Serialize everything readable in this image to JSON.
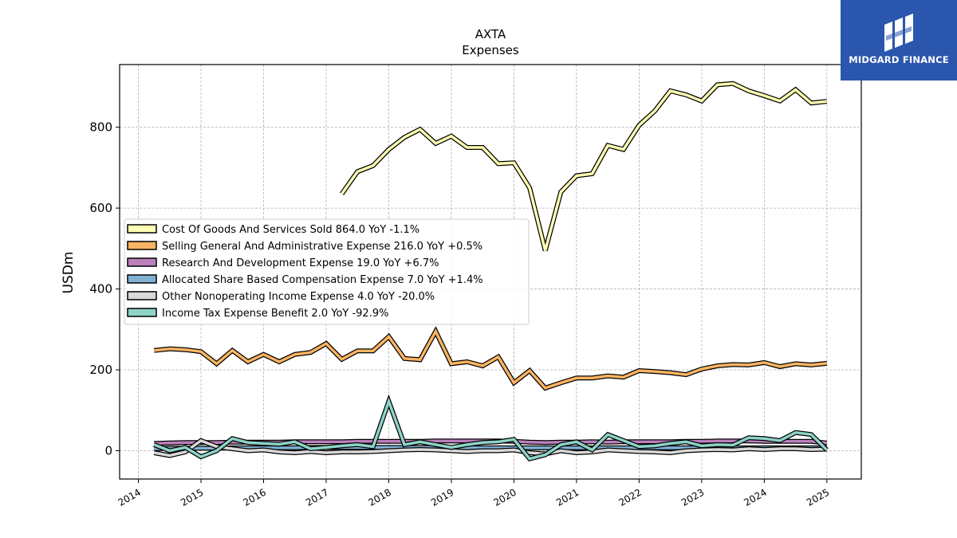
{
  "chart_data": {
    "type": "line",
    "title": "AXTA",
    "subtitle": "Expenses",
    "xlabel": "",
    "ylabel": "USDm",
    "xlim": [
      2013.7,
      2025.55
    ],
    "ylim": [
      -70,
      955
    ],
    "x_ticks": [
      "2014",
      "2015",
      "2016",
      "2017",
      "2018",
      "2019",
      "2020",
      "2021",
      "2022",
      "2023",
      "2024",
      "2025"
    ],
    "y_ticks": [
      0,
      200,
      400,
      600,
      800
    ],
    "grid": true,
    "legend_position": "center-left",
    "series": [
      {
        "name": "Cost Of Goods And Services Sold",
        "legend": "Cost Of Goods And Services Sold  864.0 YoY -1.1%",
        "color": "#ffffb3",
        "x": [
          2017.25,
          2017.5,
          2017.75,
          2018.0,
          2018.25,
          2018.5,
          2018.75,
          2019.0,
          2019.25,
          2019.5,
          2019.75,
          2020.0,
          2020.25,
          2020.5,
          2020.75,
          2021.0,
          2021.25,
          2021.5,
          2021.75,
          2022.0,
          2022.25,
          2022.5,
          2022.75,
          2023.0,
          2023.25,
          2023.5,
          2023.75,
          2024.0,
          2024.25,
          2024.5,
          2024.75,
          2025.0
        ],
        "values": [
          635,
          690,
          705,
          745,
          775,
          795,
          760,
          778,
          750,
          750,
          710,
          712,
          650,
          495,
          640,
          680,
          685,
          755,
          745,
          805,
          840,
          890,
          880,
          865,
          905,
          908,
          890,
          878,
          865,
          893,
          860,
          864
        ]
      },
      {
        "name": "Selling General And Administrative Expense",
        "legend": "Selling General And Administrative Expense  216.0 YoY +0.5%",
        "color": "#fdb462",
        "x": [
          2014.25,
          2014.5,
          2014.75,
          2015.0,
          2015.25,
          2015.5,
          2015.75,
          2016.0,
          2016.25,
          2016.5,
          2016.75,
          2017.0,
          2017.25,
          2017.5,
          2017.75,
          2018.0,
          2018.25,
          2018.5,
          2018.75,
          2019.0,
          2019.25,
          2019.5,
          2019.75,
          2020.0,
          2020.25,
          2020.5,
          2020.75,
          2021.0,
          2021.25,
          2021.5,
          2021.75,
          2022.0,
          2022.25,
          2022.5,
          2022.75,
          2023.0,
          2023.25,
          2023.5,
          2023.75,
          2024.0,
          2024.25,
          2024.5,
          2024.75,
          2025.0
        ],
        "values": [
          248,
          252,
          250,
          245,
          215,
          248,
          220,
          238,
          220,
          238,
          243,
          265,
          226,
          247,
          247,
          282,
          228,
          225,
          295,
          215,
          220,
          210,
          232,
          168,
          198,
          155,
          168,
          180,
          180,
          185,
          182,
          198,
          196,
          193,
          188,
          202,
          210,
          213,
          212,
          218,
          208,
          215,
          212,
          216
        ]
      },
      {
        "name": "Research And Development Expense",
        "legend": "Research And Development Expense  19.0 YoY +6.7%",
        "color": "#bc80bd",
        "x": [
          2014.25,
          2014.5,
          2014.75,
          2015.0,
          2015.25,
          2015.5,
          2015.75,
          2016.0,
          2016.25,
          2016.5,
          2016.75,
          2017.0,
          2017.25,
          2017.5,
          2017.75,
          2018.0,
          2018.25,
          2018.5,
          2018.75,
          2019.0,
          2019.25,
          2019.5,
          2019.75,
          2020.0,
          2020.25,
          2020.5,
          2020.75,
          2021.0,
          2021.25,
          2021.5,
          2021.75,
          2022.0,
          2022.25,
          2022.5,
          2022.75,
          2023.0,
          2023.25,
          2023.5,
          2023.75,
          2024.0,
          2024.25,
          2024.5,
          2024.75,
          2025.0
        ],
        "values": [
          18,
          19,
          20,
          20,
          20,
          21,
          21,
          21,
          21,
          22,
          22,
          22,
          22,
          23,
          23,
          23,
          23,
          23,
          24,
          24,
          24,
          24,
          24,
          23,
          21,
          20,
          21,
          21,
          22,
          21,
          22,
          22,
          22,
          22,
          23,
          23,
          24,
          24,
          24,
          23,
          23,
          23,
          23,
          19
        ]
      },
      {
        "name": "Allocated Share Based Compensation Expense",
        "legend": "Allocated Share Based Compensation Expense  7.0 YoY +1.4%",
        "color": "#80b1d3",
        "x": [
          2014.25,
          2014.5,
          2014.75,
          2015.0,
          2015.25,
          2015.5,
          2015.75,
          2016.0,
          2016.25,
          2016.5,
          2016.75,
          2017.0,
          2017.25,
          2017.5,
          2017.75,
          2018.0,
          2018.25,
          2018.5,
          2018.75,
          2019.0,
          2019.25,
          2019.5,
          2019.75,
          2020.0,
          2020.25,
          2020.5,
          2020.75,
          2021.0,
          2021.25,
          2021.5,
          2021.75,
          2022.0,
          2022.25,
          2022.5,
          2022.75,
          2023.0,
          2023.25,
          2023.5,
          2023.75,
          2024.0,
          2024.25,
          2024.5,
          2024.75,
          2025.0
        ],
        "values": [
          5,
          6,
          6,
          6,
          6,
          7,
          7,
          7,
          7,
          7,
          8,
          8,
          8,
          8,
          8,
          8,
          8,
          8,
          8,
          7,
          7,
          7,
          7,
          7,
          7,
          7,
          7,
          7,
          7,
          7,
          7,
          7,
          7,
          7,
          7,
          7,
          7,
          7,
          7,
          7,
          7,
          7,
          7,
          7
        ]
      },
      {
        "name": "Other Nonoperating Income Expense",
        "legend": "Other Nonoperating Income Expense  4.0 YoY -20.0%",
        "color": "#d9d9d9",
        "x": [
          2014.25,
          2014.5,
          2014.75,
          2015.0,
          2015.25,
          2015.5,
          2015.75,
          2016.0,
          2016.25,
          2016.5,
          2016.75,
          2017.0,
          2017.25,
          2017.5,
          2017.75,
          2018.0,
          2018.25,
          2018.5,
          2018.75,
          2019.0,
          2019.25,
          2019.5,
          2019.75,
          2020.0,
          2020.25,
          2020.5,
          2020.75,
          2021.0,
          2021.25,
          2021.5,
          2021.75,
          2022.0,
          2022.25,
          2022.5,
          2022.75,
          2023.0,
          2023.25,
          2023.5,
          2023.75,
          2024.0,
          2024.25,
          2024.5,
          2024.75,
          2025.0
        ],
        "values": [
          -5,
          -12,
          -3,
          25,
          10,
          5,
          0,
          2,
          -3,
          -5,
          -2,
          -5,
          -3,
          -3,
          -2,
          0,
          2,
          3,
          2,
          0,
          -2,
          0,
          0,
          2,
          -5,
          -8,
          0,
          -5,
          -3,
          2,
          0,
          -2,
          -3,
          -5,
          0,
          2,
          3,
          2,
          5,
          3,
          5,
          5,
          3,
          4
        ]
      },
      {
        "name": "Income Tax Expense Benefit",
        "legend": "Income Tax Expense Benefit  2.0 YoY -92.9%",
        "color": "#8dd3c7",
        "x": [
          2014.25,
          2014.5,
          2014.75,
          2015.0,
          2015.25,
          2015.5,
          2015.75,
          2016.0,
          2016.25,
          2016.5,
          2016.75,
          2017.0,
          2017.25,
          2017.5,
          2017.75,
          2018.0,
          2018.25,
          2018.5,
          2018.75,
          2019.0,
          2019.25,
          2019.5,
          2019.75,
          2020.0,
          2020.25,
          2020.5,
          2020.75,
          2021.0,
          2021.25,
          2021.5,
          2021.75,
          2022.0,
          2022.25,
          2022.5,
          2022.75,
          2023.0,
          2023.25,
          2023.5,
          2023.75,
          2024.0,
          2024.25,
          2024.5,
          2024.75,
          2025.0
        ],
        "values": [
          15,
          0,
          8,
          -15,
          0,
          30,
          20,
          18,
          16,
          22,
          5,
          8,
          12,
          15,
          10,
          122,
          15,
          22,
          15,
          8,
          15,
          20,
          22,
          28,
          -20,
          -10,
          15,
          22,
          2,
          40,
          25,
          10,
          12,
          18,
          22,
          12,
          15,
          14,
          32,
          30,
          25,
          45,
          40,
          2
        ]
      }
    ]
  },
  "logo": {
    "text": "MIDGARD FINANCE",
    "color": "#2a56ad"
  }
}
